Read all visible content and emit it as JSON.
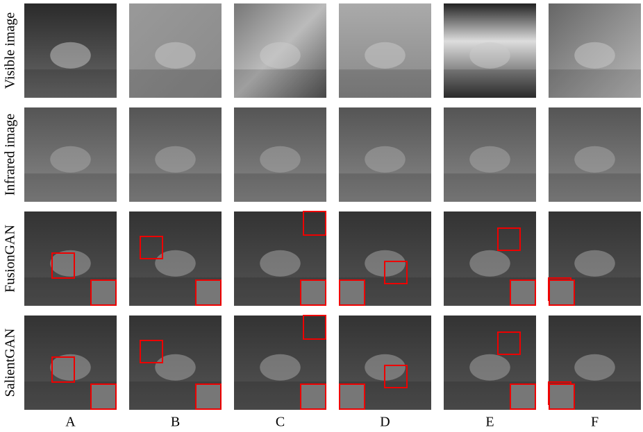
{
  "rows": [
    "Visible image",
    "Infrared image",
    "FusionGAN",
    "SalientGAN"
  ],
  "columns": [
    "A",
    "B",
    "C",
    "D",
    "E",
    "F"
  ]
}
